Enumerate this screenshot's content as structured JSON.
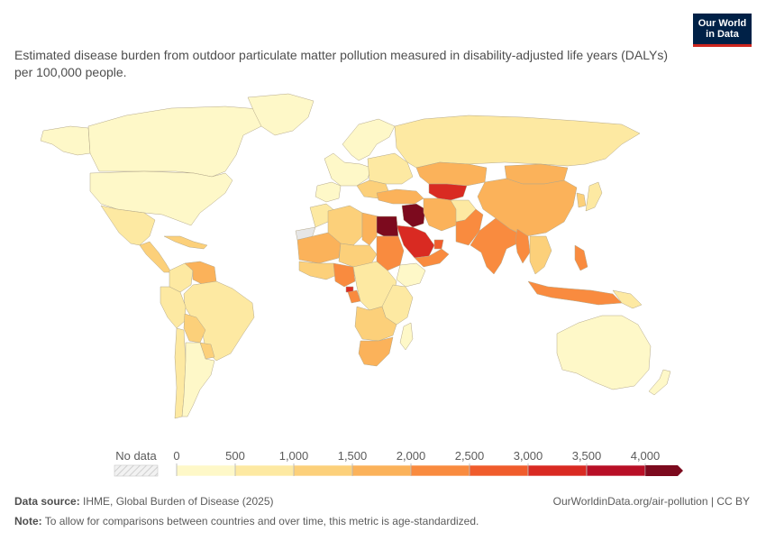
{
  "logo": {
    "line1": "Our World",
    "line2": "in Data"
  },
  "title": "Estimated disease burden from outdoor particulate matter pollution measured in disability-adjusted life years (DALYs) per 100,000 people.",
  "legend": {
    "no_data_label": "No data",
    "tick_labels": [
      "0",
      "500",
      "1,000",
      "1,500",
      "2,000",
      "2,500",
      "3,000",
      "3,500",
      "4,000"
    ],
    "bin_colors": [
      "#fef8c8",
      "#fde9a2",
      "#fcd07a",
      "#fbb25a",
      "#f98b3f",
      "#f05c2c",
      "#d92a22",
      "#b80f26",
      "#7c0a1e"
    ]
  },
  "footer": {
    "source_label": "Data source:",
    "source_text": "IHME, Global Burden of Disease (2025)",
    "url": "OurWorldinData.org/air-pollution | CC BY",
    "note_label": "Note:",
    "note_text": "To allow for comparisons between countries and over time, this metric is age-standardized."
  },
  "map_regions": [
    {
      "name": "canada",
      "fill": "#fef8c8"
    },
    {
      "name": "greenland",
      "fill": "#fef8c8"
    },
    {
      "name": "alaska",
      "fill": "#fef8c8"
    },
    {
      "name": "united-states",
      "fill": "#fef8c8"
    },
    {
      "name": "mexico",
      "fill": "#fde9a2"
    },
    {
      "name": "central-america",
      "fill": "#fcd07a"
    },
    {
      "name": "caribbean",
      "fill": "#fcd07a"
    },
    {
      "name": "venezuela",
      "fill": "#fbb25a"
    },
    {
      "name": "colombia",
      "fill": "#fde9a2"
    },
    {
      "name": "brazil",
      "fill": "#fde9a2"
    },
    {
      "name": "peru",
      "fill": "#fde9a2"
    },
    {
      "name": "bolivia",
      "fill": "#fcd07a"
    },
    {
      "name": "argentina",
      "fill": "#fef8c8"
    },
    {
      "name": "chile",
      "fill": "#fde9a2"
    },
    {
      "name": "paraguay",
      "fill": "#fcd07a"
    },
    {
      "name": "scandinavia",
      "fill": "#fef8c8"
    },
    {
      "name": "western-europe",
      "fill": "#fef8c8"
    },
    {
      "name": "iberia",
      "fill": "#fef8c8"
    },
    {
      "name": "eastern-europe",
      "fill": "#fde9a2"
    },
    {
      "name": "balkans",
      "fill": "#fcd07a"
    },
    {
      "name": "russia",
      "fill": "#fde9a2"
    },
    {
      "name": "kazakhstan",
      "fill": "#fbb25a"
    },
    {
      "name": "turkey",
      "fill": "#fbb25a"
    },
    {
      "name": "turkmenistan-uzbekistan",
      "fill": "#d92a22"
    },
    {
      "name": "mongolia",
      "fill": "#fbb25a"
    },
    {
      "name": "china",
      "fill": "#fbb25a"
    },
    {
      "name": "iran",
      "fill": "#fbb25a"
    },
    {
      "name": "afghanistan",
      "fill": "#fde9a2"
    },
    {
      "name": "pakistan",
      "fill": "#f98b3f"
    },
    {
      "name": "india",
      "fill": "#f98b3f"
    },
    {
      "name": "southeast-asia",
      "fill": "#fcd07a"
    },
    {
      "name": "myanmar",
      "fill": "#f98b3f"
    },
    {
      "name": "indonesia",
      "fill": "#f98b3f"
    },
    {
      "name": "philippines",
      "fill": "#f98b3f"
    },
    {
      "name": "japan",
      "fill": "#fde9a2"
    },
    {
      "name": "korea",
      "fill": "#fcd07a"
    },
    {
      "name": "papua-new-guinea",
      "fill": "#fde9a2"
    },
    {
      "name": "australia",
      "fill": "#fef8c8"
    },
    {
      "name": "new-zealand",
      "fill": "#fef8c8"
    },
    {
      "name": "morocco",
      "fill": "#fde9a2"
    },
    {
      "name": "western-sahara",
      "fill": "#e6e6e6"
    },
    {
      "name": "algeria",
      "fill": "#fcd07a"
    },
    {
      "name": "libya",
      "fill": "#fbb25a"
    },
    {
      "name": "egypt",
      "fill": "#7c0a1e"
    },
    {
      "name": "mauritania-mali",
      "fill": "#fbb25a"
    },
    {
      "name": "niger-chad",
      "fill": "#fcd07a"
    },
    {
      "name": "sudan",
      "fill": "#f98b3f"
    },
    {
      "name": "nigeria",
      "fill": "#f98b3f"
    },
    {
      "name": "west-africa",
      "fill": "#fcd07a"
    },
    {
      "name": "ethiopia",
      "fill": "#fef8c8"
    },
    {
      "name": "central-africa",
      "fill": "#fde9a2"
    },
    {
      "name": "equatorial-guinea",
      "fill": "#d92a22"
    },
    {
      "name": "gabon",
      "fill": "#f98b3f"
    },
    {
      "name": "east-africa",
      "fill": "#fde9a2"
    },
    {
      "name": "southern-africa",
      "fill": "#fcd07a"
    },
    {
      "name": "south-africa",
      "fill": "#fbb25a"
    },
    {
      "name": "madagascar",
      "fill": "#fef8c8"
    },
    {
      "name": "iraq",
      "fill": "#7c0a1e"
    },
    {
      "name": "saudi-arabia",
      "fill": "#d92a22"
    },
    {
      "name": "yemen-oman",
      "fill": "#f98b3f"
    },
    {
      "name": "uae-qatar",
      "fill": "#f05c2c"
    }
  ]
}
